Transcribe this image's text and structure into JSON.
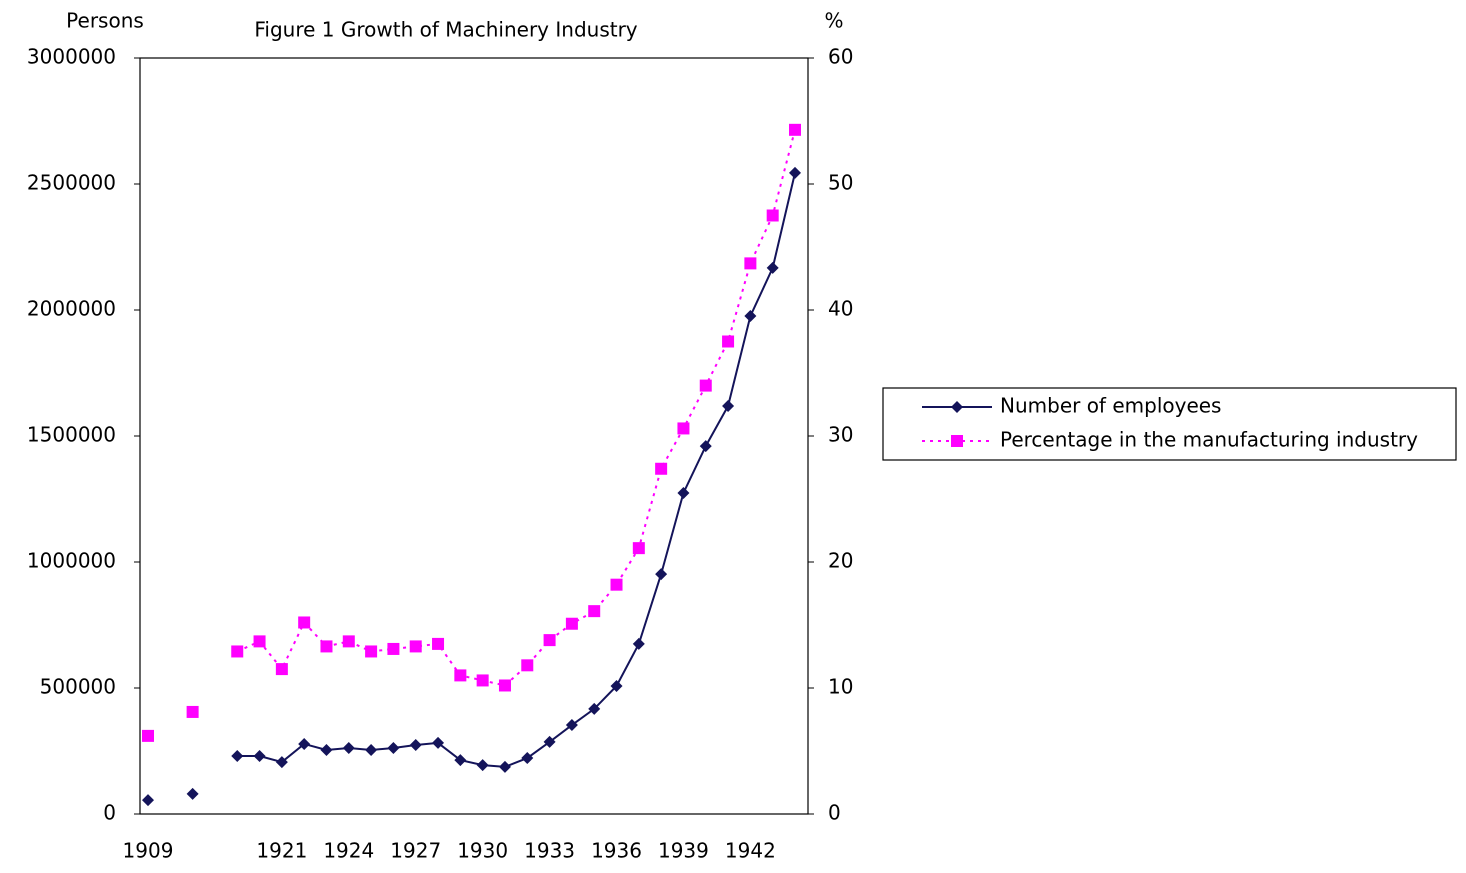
{
  "chart_data": {
    "type": "line",
    "title": "Figure 1 Growth of Machinery Industry",
    "y_label": "Persons",
    "y2_label": "%",
    "categories": [
      "1909",
      null,
      null,
      null,
      null,
      null,
      "1921",
      null,
      null,
      "1924",
      null,
      null,
      "1927",
      null,
      null,
      "1930",
      null,
      null,
      "1933",
      null,
      null,
      "1936",
      null,
      null,
      "1939",
      null,
      null,
      "1942",
      null,
      null
    ],
    "series": [
      {
        "name": "Number of employees",
        "color": "#14145a",
        "line_style": "solid",
        "marker": "diamond",
        "values": [
          55000,
          null,
          80000,
          null,
          230000,
          230000,
          206000,
          278000,
          254000,
          262000,
          254000,
          262000,
          274000,
          282000,
          214000,
          194000,
          187000,
          222000,
          286000,
          353000,
          417000,
          508000,
          675000,
          952000,
          1274000,
          1460000,
          1619000,
          1976000,
          2167000,
          2544000
        ]
      },
      {
        "name": "Percentage in the manufacturing industry",
        "color": "#ff00ff",
        "line_style": "dotted",
        "marker": "square",
        "axis": "y2",
        "values": [
          6.2,
          null,
          8.1,
          null,
          12.9,
          13.7,
          11.5,
          15.2,
          13.3,
          13.7,
          12.9,
          13.1,
          13.3,
          13.5,
          11.0,
          10.6,
          10.2,
          11.8,
          13.8,
          15.1,
          16.1,
          18.2,
          21.1,
          27.4,
          30.6,
          34.0,
          37.5,
          43.7,
          47.5,
          54.3
        ]
      }
    ],
    "ylim": [
      0,
      3000000
    ],
    "yticks": [
      0,
      500000,
      1000000,
      1500000,
      2000000,
      2500000,
      3000000
    ],
    "y2lim": [
      0,
      60
    ],
    "y2ticks": [
      0,
      10,
      20,
      30,
      40,
      50,
      60
    ],
    "grid": false,
    "legend": "right"
  }
}
